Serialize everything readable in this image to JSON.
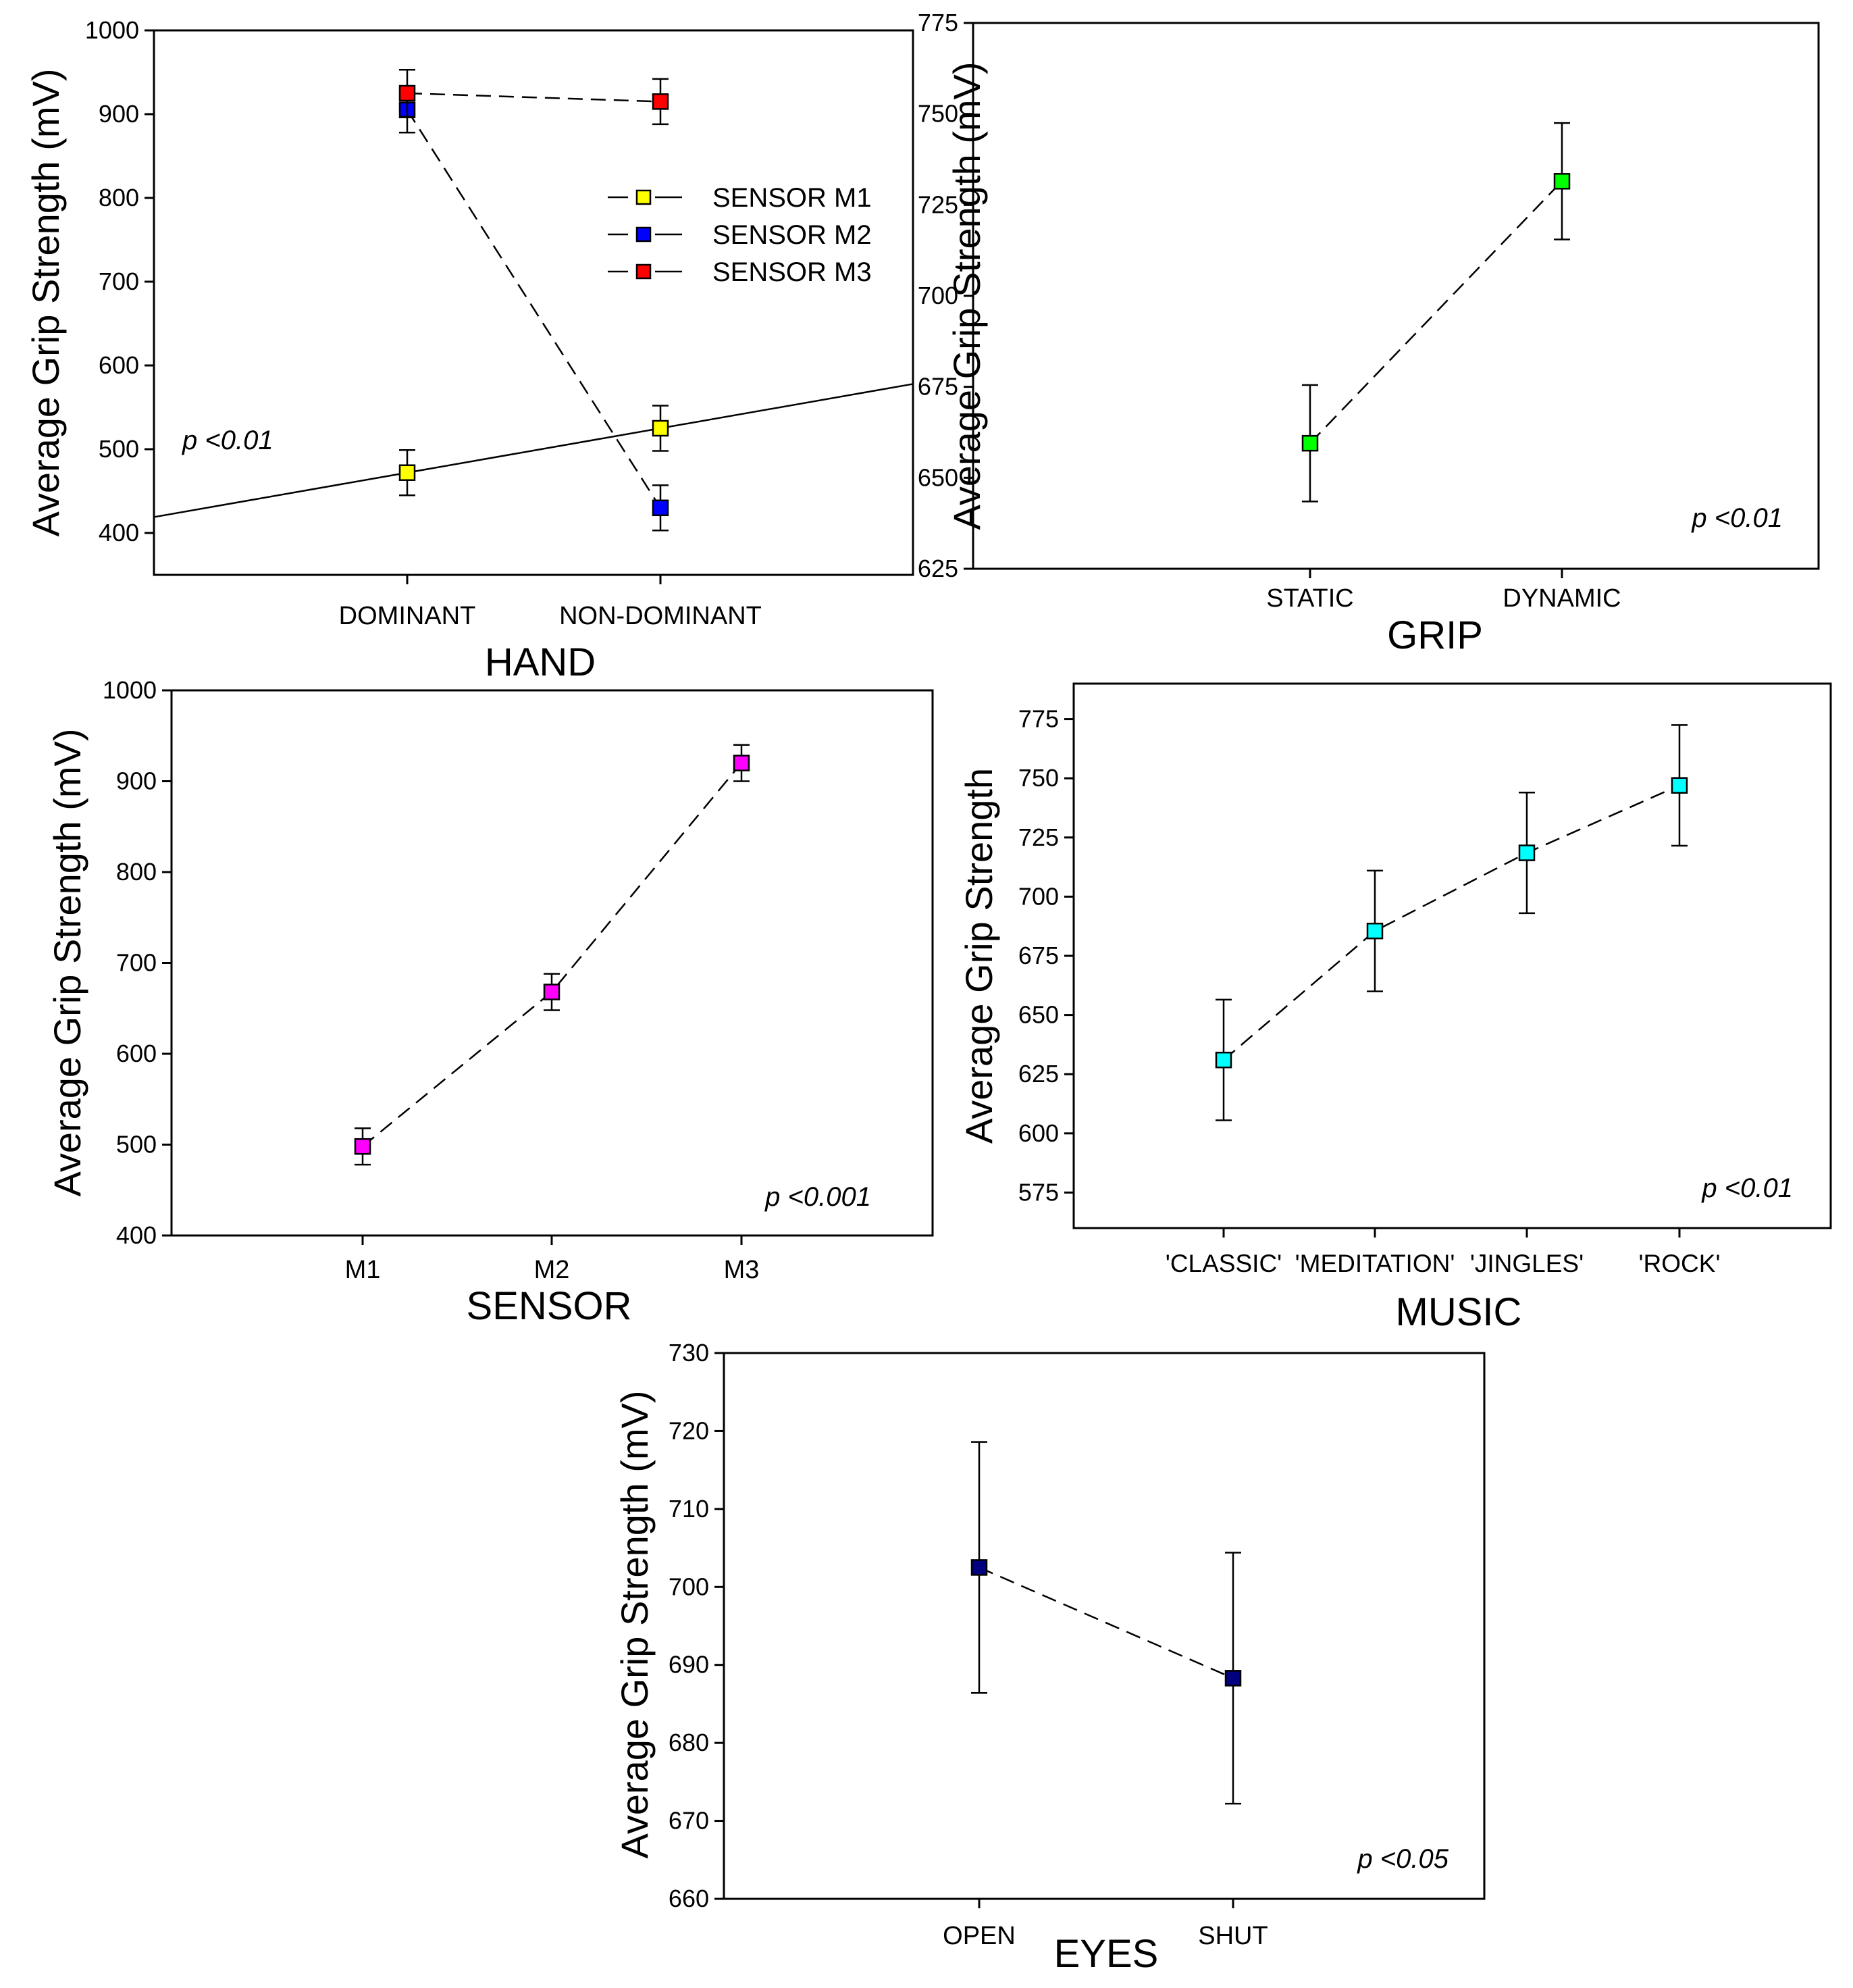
{
  "chart_data": [
    {
      "id": "hand",
      "type": "line",
      "title": "",
      "xlabel": "HAND",
      "ylabel": "Average Grip Strength (mV)",
      "categories": [
        "DOMINANT",
        "NON-DOMINANT"
      ],
      "ylim": [
        350,
        1000
      ],
      "yticks": [
        400,
        500,
        600,
        700,
        800,
        900,
        1000
      ],
      "grid": false,
      "legend_position": "top-right",
      "annotation": "p <0.01",
      "series": [
        {
          "name": "SENSOR M1",
          "color": "#ffff00",
          "values": [
            472,
            525
          ],
          "errors": [
            27,
            27
          ],
          "line": "solid-extended"
        },
        {
          "name": "SENSOR M2",
          "color": "#0000ff",
          "values": [
            905,
            430
          ],
          "errors": [
            27,
            27
          ],
          "line": "dashed"
        },
        {
          "name": "SENSOR M3",
          "color": "#ff0000",
          "values": [
            925,
            915
          ],
          "errors": [
            28,
            27
          ],
          "line": "dashed"
        }
      ]
    },
    {
      "id": "grip",
      "type": "line",
      "title": "",
      "xlabel": "GRIP",
      "ylabel": "Average Grip Strength (mV)",
      "categories": [
        "STATIC",
        "DYNAMIC"
      ],
      "ylim": [
        625,
        775
      ],
      "yticks": [
        625,
        650,
        675,
        700,
        725,
        750,
        775
      ],
      "grid": false,
      "annotation": "p <0.01",
      "series": [
        {
          "name": "GRIP",
          "color": "#00ff00",
          "values": [
            659.5,
            731.5
          ],
          "errors": [
            16,
            16
          ],
          "line": "dashed"
        }
      ]
    },
    {
      "id": "sensor",
      "type": "line",
      "title": "",
      "xlabel": "SENSOR",
      "ylabel": "Average Grip Strength (mV)",
      "categories": [
        "M1",
        "M2",
        "M3"
      ],
      "ylim": [
        400,
        1000
      ],
      "yticks": [
        400,
        500,
        600,
        700,
        800,
        900,
        1000
      ],
      "grid": false,
      "annotation": "p <0.001",
      "series": [
        {
          "name": "SENSOR",
          "color": "#ff00ff",
          "values": [
            498,
            668,
            920
          ],
          "errors": [
            20,
            20,
            20
          ],
          "line": "dashed"
        }
      ]
    },
    {
      "id": "music",
      "type": "line",
      "title": "",
      "xlabel": "MUSIC",
      "ylabel": "Average Grip Strength",
      "categories": [
        "'CLASSIC'",
        "'MEDITATION'",
        "'JINGLES'",
        "'ROCK'"
      ],
      "ylim": [
        560,
        790
      ],
      "yticks": [
        575,
        600,
        625,
        650,
        675,
        700,
        725,
        750,
        775
      ],
      "grid": false,
      "annotation": "p <0.01",
      "series": [
        {
          "name": "MUSIC",
          "color": "#00ffff",
          "values": [
            631,
            685.5,
            718.5,
            747
          ],
          "errors": [
            25.5,
            25.5,
            25.5,
            25.5
          ],
          "line": "dashed"
        }
      ]
    },
    {
      "id": "eyes",
      "type": "line",
      "title": "",
      "xlabel": "EYES",
      "ylabel": "Average Grip Strength (mV)",
      "categories": [
        "OPEN",
        "SHUT"
      ],
      "ylim": [
        660,
        730
      ],
      "yticks": [
        660,
        670,
        680,
        690,
        700,
        710,
        720,
        730
      ],
      "grid": false,
      "annotation": "p <0.05",
      "series": [
        {
          "name": "EYES",
          "color": "#000080",
          "values": [
            702.5,
            688.3
          ],
          "errors": [
            16.1,
            16.1
          ],
          "line": "dashed"
        }
      ]
    }
  ]
}
